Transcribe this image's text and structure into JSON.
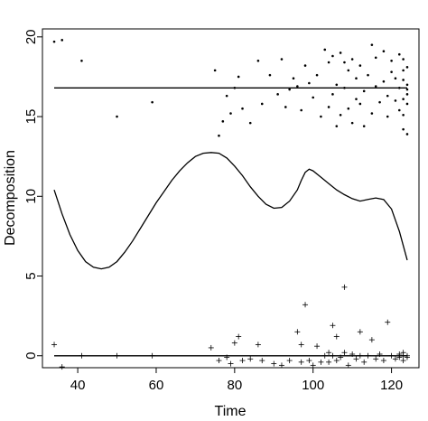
{
  "chart_data": {
    "type": "scatter",
    "xlabel": "Time",
    "ylabel": "Decomposition",
    "xlim": [
      31,
      127
    ],
    "ylim": [
      -0.75,
      20.5
    ],
    "x_ticks": [
      40,
      60,
      80,
      100,
      120
    ],
    "y_ticks": [
      0,
      5,
      10,
      15,
      20
    ],
    "grid": false,
    "series": [
      {
        "type": "line",
        "values": [
          [
            34,
            16.8
          ],
          [
            124,
            16.8
          ]
        ]
      },
      {
        "type": "line",
        "values": [
          [
            34,
            0.0
          ],
          [
            124,
            0.0
          ]
        ]
      },
      {
        "type": "line",
        "values": [
          [
            34,
            10.4
          ],
          [
            36,
            8.9
          ],
          [
            38,
            7.6
          ],
          [
            40,
            6.6
          ],
          [
            42,
            5.9
          ],
          [
            44,
            5.55
          ],
          [
            46,
            5.45
          ],
          [
            48,
            5.55
          ],
          [
            50,
            5.9
          ],
          [
            52,
            6.5
          ],
          [
            54,
            7.2
          ],
          [
            56,
            8.0
          ],
          [
            58,
            8.8
          ],
          [
            60,
            9.6
          ],
          [
            62,
            10.3
          ],
          [
            64,
            11.0
          ],
          [
            66,
            11.6
          ],
          [
            68,
            12.1
          ],
          [
            70,
            12.5
          ],
          [
            72,
            12.7
          ],
          [
            74,
            12.75
          ],
          [
            76,
            12.7
          ],
          [
            78,
            12.4
          ],
          [
            80,
            11.9
          ],
          [
            82,
            11.3
          ],
          [
            84,
            10.6
          ],
          [
            86,
            10.0
          ],
          [
            88,
            9.5
          ],
          [
            90,
            9.25
          ],
          [
            92,
            9.3
          ],
          [
            94,
            9.7
          ],
          [
            96,
            10.4
          ],
          [
            97,
            11.0
          ],
          [
            98,
            11.5
          ],
          [
            99,
            11.7
          ],
          [
            100,
            11.6
          ],
          [
            102,
            11.2
          ],
          [
            104,
            10.8
          ],
          [
            106,
            10.4
          ],
          [
            108,
            10.1
          ],
          [
            110,
            9.85
          ],
          [
            112,
            9.7
          ],
          [
            114,
            9.8
          ],
          [
            116,
            9.9
          ],
          [
            118,
            9.8
          ],
          [
            120,
            9.2
          ],
          [
            122,
            7.8
          ],
          [
            124,
            6.0
          ]
        ]
      },
      {
        "type": "scatter",
        "marker": "dot",
        "values": [
          [
            34,
            19.7
          ],
          [
            36,
            19.8
          ],
          [
            41,
            18.5
          ],
          [
            50,
            15.0
          ],
          [
            59,
            15.9
          ],
          [
            75,
            17.9
          ],
          [
            76,
            13.8
          ],
          [
            77,
            14.7
          ],
          [
            78,
            16.3
          ],
          [
            79,
            15.2
          ],
          [
            80,
            16.8
          ],
          [
            81,
            17.5
          ],
          [
            82,
            15.5
          ],
          [
            84,
            14.6
          ],
          [
            86,
            18.5
          ],
          [
            87,
            15.8
          ],
          [
            89,
            17.6
          ],
          [
            91,
            16.4
          ],
          [
            92,
            18.6
          ],
          [
            93,
            15.6
          ],
          [
            94,
            16.7
          ],
          [
            95,
            17.4
          ],
          [
            96,
            16.9
          ],
          [
            97,
            15.4
          ],
          [
            98,
            18.2
          ],
          [
            99,
            17.1
          ],
          [
            100,
            16.2
          ],
          [
            101,
            17.6
          ],
          [
            102,
            15.0
          ],
          [
            103,
            19.2
          ],
          [
            104,
            18.4
          ],
          [
            104,
            15.6
          ],
          [
            105,
            18.8
          ],
          [
            105,
            16.4
          ],
          [
            106,
            14.4
          ],
          [
            106,
            17.0
          ],
          [
            107,
            15.1
          ],
          [
            107,
            19.0
          ],
          [
            108,
            18.4
          ],
          [
            108,
            16.8
          ],
          [
            109,
            15.5
          ],
          [
            109,
            17.9
          ],
          [
            110,
            18.6
          ],
          [
            110,
            14.6
          ],
          [
            111,
            16.1
          ],
          [
            111,
            17.4
          ],
          [
            112,
            15.8
          ],
          [
            112,
            18.2
          ],
          [
            113,
            16.6
          ],
          [
            113,
            14.4
          ],
          [
            114,
            17.6
          ],
          [
            115,
            19.5
          ],
          [
            115,
            15.2
          ],
          [
            116,
            16.9
          ],
          [
            116,
            18.7
          ],
          [
            117,
            15.9
          ],
          [
            118,
            17.2
          ],
          [
            118,
            19.1
          ],
          [
            119,
            16.3
          ],
          [
            119,
            15.0
          ],
          [
            120,
            17.8
          ],
          [
            120,
            18.5
          ],
          [
            121,
            16.0
          ],
          [
            121,
            17.4
          ],
          [
            122,
            18.9
          ],
          [
            122,
            15.4
          ],
          [
            122,
            16.8
          ],
          [
            123,
            17.9
          ],
          [
            123,
            16.1
          ],
          [
            123,
            18.6
          ],
          [
            123,
            15.1
          ],
          [
            123,
            14.2
          ],
          [
            123,
            17.3
          ],
          [
            124,
            16.7
          ],
          [
            124,
            17.0
          ],
          [
            124,
            13.9
          ],
          [
            124,
            18.1
          ],
          [
            124,
            15.8
          ],
          [
            124,
            16.4
          ]
        ]
      },
      {
        "type": "scatter",
        "marker": "plus",
        "values": [
          [
            34,
            0.7
          ],
          [
            36,
            -0.7
          ],
          [
            41,
            0.0
          ],
          [
            50,
            0.0
          ],
          [
            59,
            0.0
          ],
          [
            74,
            0.5
          ],
          [
            76,
            -0.3
          ],
          [
            78,
            -0.1
          ],
          [
            79,
            -0.5
          ],
          [
            80,
            0.8
          ],
          [
            81,
            1.2
          ],
          [
            82,
            -0.3
          ],
          [
            84,
            -0.2
          ],
          [
            86,
            0.7
          ],
          [
            87,
            -0.3
          ],
          [
            90,
            -0.5
          ],
          [
            92,
            -0.6
          ],
          [
            94,
            -0.3
          ],
          [
            96,
            1.5
          ],
          [
            97,
            0.7
          ],
          [
            97,
            -0.4
          ],
          [
            98,
            3.2
          ],
          [
            99,
            -0.3
          ],
          [
            100,
            -0.6
          ],
          [
            101,
            0.6
          ],
          [
            102,
            -0.4
          ],
          [
            103,
            0.0
          ],
          [
            104,
            0.2
          ],
          [
            104,
            -0.4
          ],
          [
            105,
            1.9
          ],
          [
            105,
            0.0
          ],
          [
            106,
            1.2
          ],
          [
            106,
            -0.3
          ],
          [
            107,
            -0.1
          ],
          [
            108,
            4.3
          ],
          [
            108,
            0.2
          ],
          [
            109,
            -0.6
          ],
          [
            110,
            0.1
          ],
          [
            111,
            -0.2
          ],
          [
            112,
            0.0
          ],
          [
            112,
            1.5
          ],
          [
            113,
            -0.4
          ],
          [
            114,
            0.0
          ],
          [
            115,
            1.0
          ],
          [
            116,
            -0.2
          ],
          [
            117,
            0.1
          ],
          [
            118,
            -0.3
          ],
          [
            119,
            2.1
          ],
          [
            120,
            0.0
          ],
          [
            121,
            -0.2
          ],
          [
            122,
            0.1
          ],
          [
            122,
            -0.1
          ],
          [
            123,
            0.0
          ],
          [
            123,
            0.2
          ],
          [
            123,
            -0.3
          ],
          [
            124,
            0.0
          ],
          [
            124,
            -0.1
          ]
        ]
      }
    ]
  }
}
